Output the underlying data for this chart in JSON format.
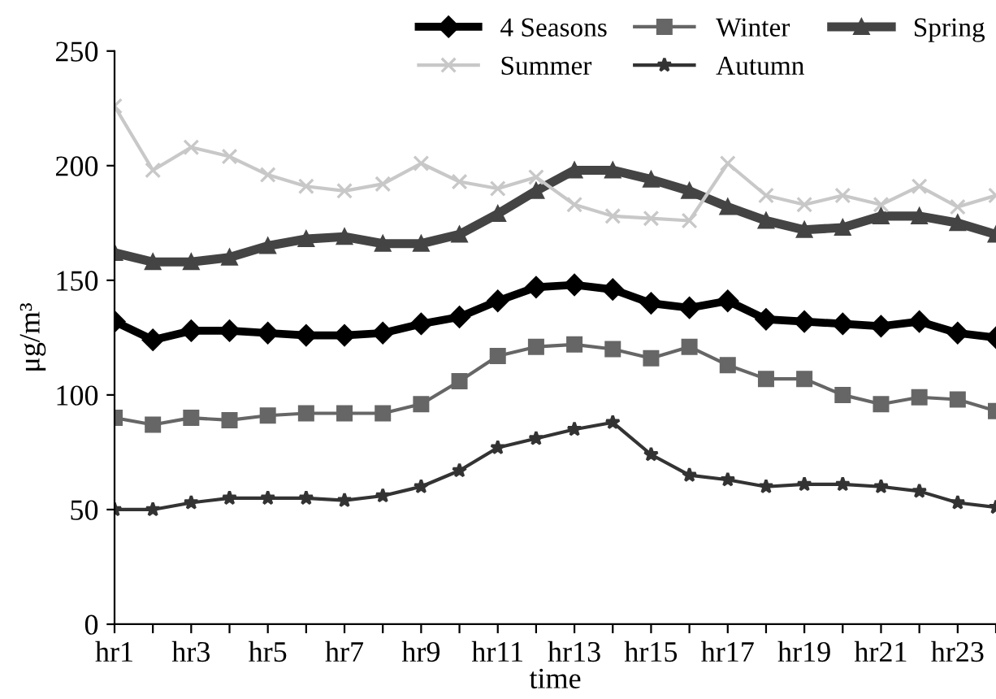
{
  "chart_data": {
    "type": "line",
    "xlabel": "time",
    "ylabel": "μg/m³",
    "categories": [
      "hr1",
      null,
      "hr3",
      null,
      "hr5",
      null,
      "hr7",
      null,
      "hr9",
      null,
      "hr11",
      null,
      "hr13",
      null,
      "hr15",
      null,
      "hr17",
      null,
      "hr19",
      null,
      "hr21",
      null,
      "hr23",
      null
    ],
    "ylim": [
      0,
      250
    ],
    "yticks": [
      0,
      50,
      100,
      150,
      200,
      250
    ],
    "grid": false,
    "legend": "top right",
    "series": [
      {
        "name": "4 Seasons",
        "color": "#000000",
        "marker": "diamond",
        "values": [
          132,
          124,
          128,
          128,
          127,
          126,
          126,
          127,
          131,
          134,
          141,
          147,
          148,
          146,
          140,
          138,
          141,
          133,
          132,
          131,
          130,
          132,
          127,
          125
        ]
      },
      {
        "name": "Winter",
        "color": "#666666",
        "marker": "square",
        "values": [
          90,
          87,
          90,
          89,
          91,
          92,
          92,
          92,
          96,
          106,
          117,
          121,
          122,
          120,
          116,
          121,
          113,
          107,
          107,
          100,
          96,
          99,
          98,
          93
        ]
      },
      {
        "name": "Spring",
        "color": "#444444",
        "marker": "triangle",
        "values": [
          162,
          158,
          158,
          160,
          165,
          168,
          169,
          166,
          166,
          170,
          179,
          189,
          198,
          198,
          194,
          189,
          182,
          176,
          172,
          173,
          178,
          178,
          175,
          170
        ]
      },
      {
        "name": "Summer",
        "color": "#c8c8c8",
        "marker": "cross",
        "values": [
          226,
          198,
          208,
          204,
          196,
          191,
          189,
          192,
          201,
          193,
          190,
          195,
          183,
          178,
          177,
          176,
          201,
          187,
          183,
          187,
          183,
          191,
          182,
          187
        ]
      },
      {
        "name": "Autumn",
        "color": "#333333",
        "marker": "star",
        "values": [
          50,
          50,
          53,
          55,
          55,
          55,
          54,
          56,
          60,
          67,
          77,
          81,
          85,
          88,
          74,
          65,
          63,
          60,
          61,
          61,
          60,
          58,
          53,
          51
        ]
      }
    ]
  }
}
